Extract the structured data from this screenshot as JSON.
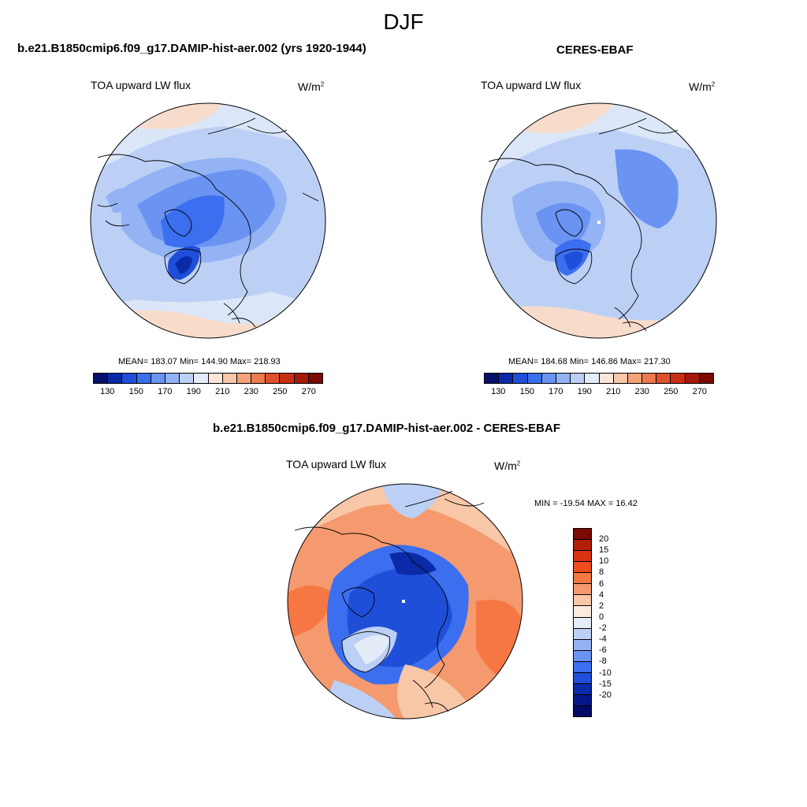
{
  "season": "DJF",
  "panels": [
    {
      "title": "b.e21.B1850cmip6.f09_g17.DAMIP-hist-aer.002 (yrs 1920-1944)",
      "left_label": "TOA upward LW flux",
      "units": "W/m",
      "units_sup": "2",
      "stats": "MEAN= 183.07  Min= 144.90  Max= 218.93"
    },
    {
      "title": "CERES-EBAF",
      "left_label": "TOA upward LW flux",
      "units": "W/m",
      "units_sup": "2",
      "stats": "MEAN= 184.68  Min= 146.86  Max= 217.30"
    }
  ],
  "diff_panel": {
    "title": "b.e21.B1850cmip6.f09_g17.DAMIP-hist-aer.002 - CERES-EBAF",
    "left_label": "TOA upward LW flux",
    "units": "W/m",
    "units_sup": "2",
    "stats": "MIN = -19.54 MAX =  16.42"
  },
  "abs_colorbar": {
    "colors": [
      "#08106e",
      "#0a2aa8",
      "#1f4fd8",
      "#3b6ff0",
      "#6a93f2",
      "#93b3f4",
      "#bcd0f6",
      "#e4ecf8",
      "#fde6d8",
      "#f8c6a9",
      "#f3a37a",
      "#ec7a4e",
      "#e0502c",
      "#c82e14",
      "#a51a0a",
      "#7a0a03"
    ],
    "ticks": [
      "130",
      "150",
      "170",
      "190",
      "210",
      "230",
      "250",
      "270"
    ]
  },
  "diff_colorbar": {
    "colors": [
      "#7a0a03",
      "#b01e08",
      "#d9330f",
      "#f04c1c",
      "#f77744",
      "#f59a6e",
      "#f8c7a8",
      "#fdeadf",
      "#e4ecf8",
      "#bcd0f6",
      "#93b3f4",
      "#6a93f2",
      "#3b6ff0",
      "#1f4fd8",
      "#0a2aa8",
      "#06178a",
      "#020a66"
    ],
    "ticks": [
      "20",
      "15",
      "10",
      "8",
      "6",
      "4",
      "2",
      "0",
      "-2",
      "-4",
      "-6",
      "-8",
      "-10",
      "-15",
      "-20"
    ]
  }
}
